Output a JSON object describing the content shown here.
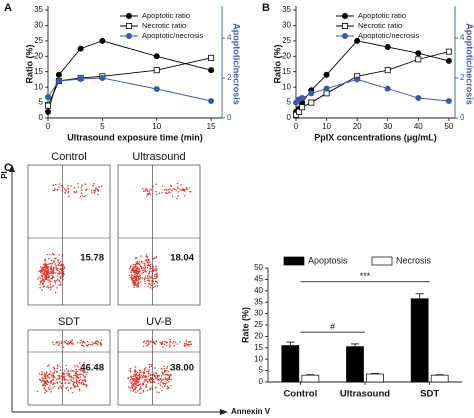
{
  "chart_data": [
    {
      "type": "line",
      "panel": "A",
      "x_label": "Ultrasound exposure time (min)",
      "y_label": "Ratio (%)",
      "y2_label": "Apoptotic/necrosis",
      "x": [
        0,
        1,
        3,
        5,
        10,
        15
      ],
      "xlim": [
        0,
        16
      ],
      "xticks": [
        0,
        5,
        10,
        15
      ],
      "ylim": [
        0,
        35
      ],
      "yticks": [
        0,
        5,
        10,
        15,
        20,
        25,
        30,
        35
      ],
      "y2lim": [
        0,
        5.4
      ],
      "y2ticks": [
        0,
        2,
        4
      ],
      "series": [
        {
          "name": "Apoptotic ratio",
          "color": "#000000",
          "marker": "circle",
          "filled": true,
          "values": [
            2,
            14,
            22.5,
            25,
            20,
            15.5
          ]
        },
        {
          "name": "Necrotic ratio",
          "color": "#000000",
          "marker": "square",
          "filled": false,
          "values": [
            4,
            12,
            13,
            13.5,
            15.5,
            19.5
          ]
        },
        {
          "name": "Apoptotic/necrosis",
          "color": "#3a5aa8",
          "marker": "circle",
          "filled": true,
          "axis": "y2",
          "values": [
            1.05,
            1.85,
            1.95,
            2.0,
            1.45,
            0.85
          ]
        }
      ]
    },
    {
      "type": "line",
      "panel": "B",
      "x_label": "PpIX concentrations (μg/mL)",
      "y_label": "Ratio (%)",
      "y2_label": "Apoptotic/necrosis",
      "x": [
        0,
        1,
        2,
        5,
        10,
        20,
        30,
        40,
        50
      ],
      "xlim": [
        0,
        52
      ],
      "xticks": [
        0,
        10,
        20,
        30,
        40,
        50
      ],
      "ylim": [
        0,
        35
      ],
      "yticks": [
        0,
        5,
        10,
        15,
        20,
        25,
        30,
        35
      ],
      "y2lim": [
        0,
        5.4
      ],
      "y2ticks": [
        0,
        2,
        4
      ],
      "series": [
        {
          "name": "Apoptotic ratio",
          "color": "#000000",
          "marker": "circle",
          "filled": true,
          "values": [
            2,
            3,
            5,
            9,
            14,
            25,
            23,
            21,
            18.5
          ]
        },
        {
          "name": "Necrotic ratio",
          "color": "#000000",
          "marker": "square",
          "filled": false,
          "values": [
            1,
            2,
            3.5,
            5,
            8,
            13.5,
            15.5,
            19,
            21.5
          ]
        },
        {
          "name": "Apoptotic/necrosis",
          "color": "#3a5aa8",
          "marker": "circle",
          "filled": true,
          "axis": "y2",
          "values": [
            0.77,
            0.93,
            1.0,
            1.23,
            1.47,
            1.93,
            1.47,
            1.0,
            0.85
          ]
        }
      ]
    },
    {
      "type": "flow",
      "panel": "C",
      "y_label": "PI",
      "x_label": "Annexin V",
      "titles": [
        "Control",
        "Ultrasound",
        "SDT",
        "UV-B"
      ],
      "values": [
        15.78,
        18.04,
        46.48,
        38.0
      ],
      "value_labels": [
        "15.78",
        "18.04",
        "46.48",
        "38.00"
      ]
    },
    {
      "type": "bar",
      "y_label": "Rate (%)",
      "categories": [
        "Control",
        "Ultrasound",
        "SDT"
      ],
      "ylim": [
        0,
        50
      ],
      "yticks": [
        0,
        5,
        10,
        15,
        20,
        25,
        30,
        35,
        40,
        45,
        50
      ],
      "series": [
        {
          "name": "Apoptosis",
          "color": "#000000",
          "values": [
            16,
            15.5,
            36.5
          ],
          "errors": [
            1.5,
            1.2,
            2.2
          ]
        },
        {
          "name": "Necrosis",
          "color": "#ffffff",
          "values": [
            3,
            3.5,
            3
          ],
          "errors": [
            0.2,
            0.2,
            0.2
          ]
        }
      ],
      "annotations": [
        "#",
        "***"
      ]
    }
  ]
}
